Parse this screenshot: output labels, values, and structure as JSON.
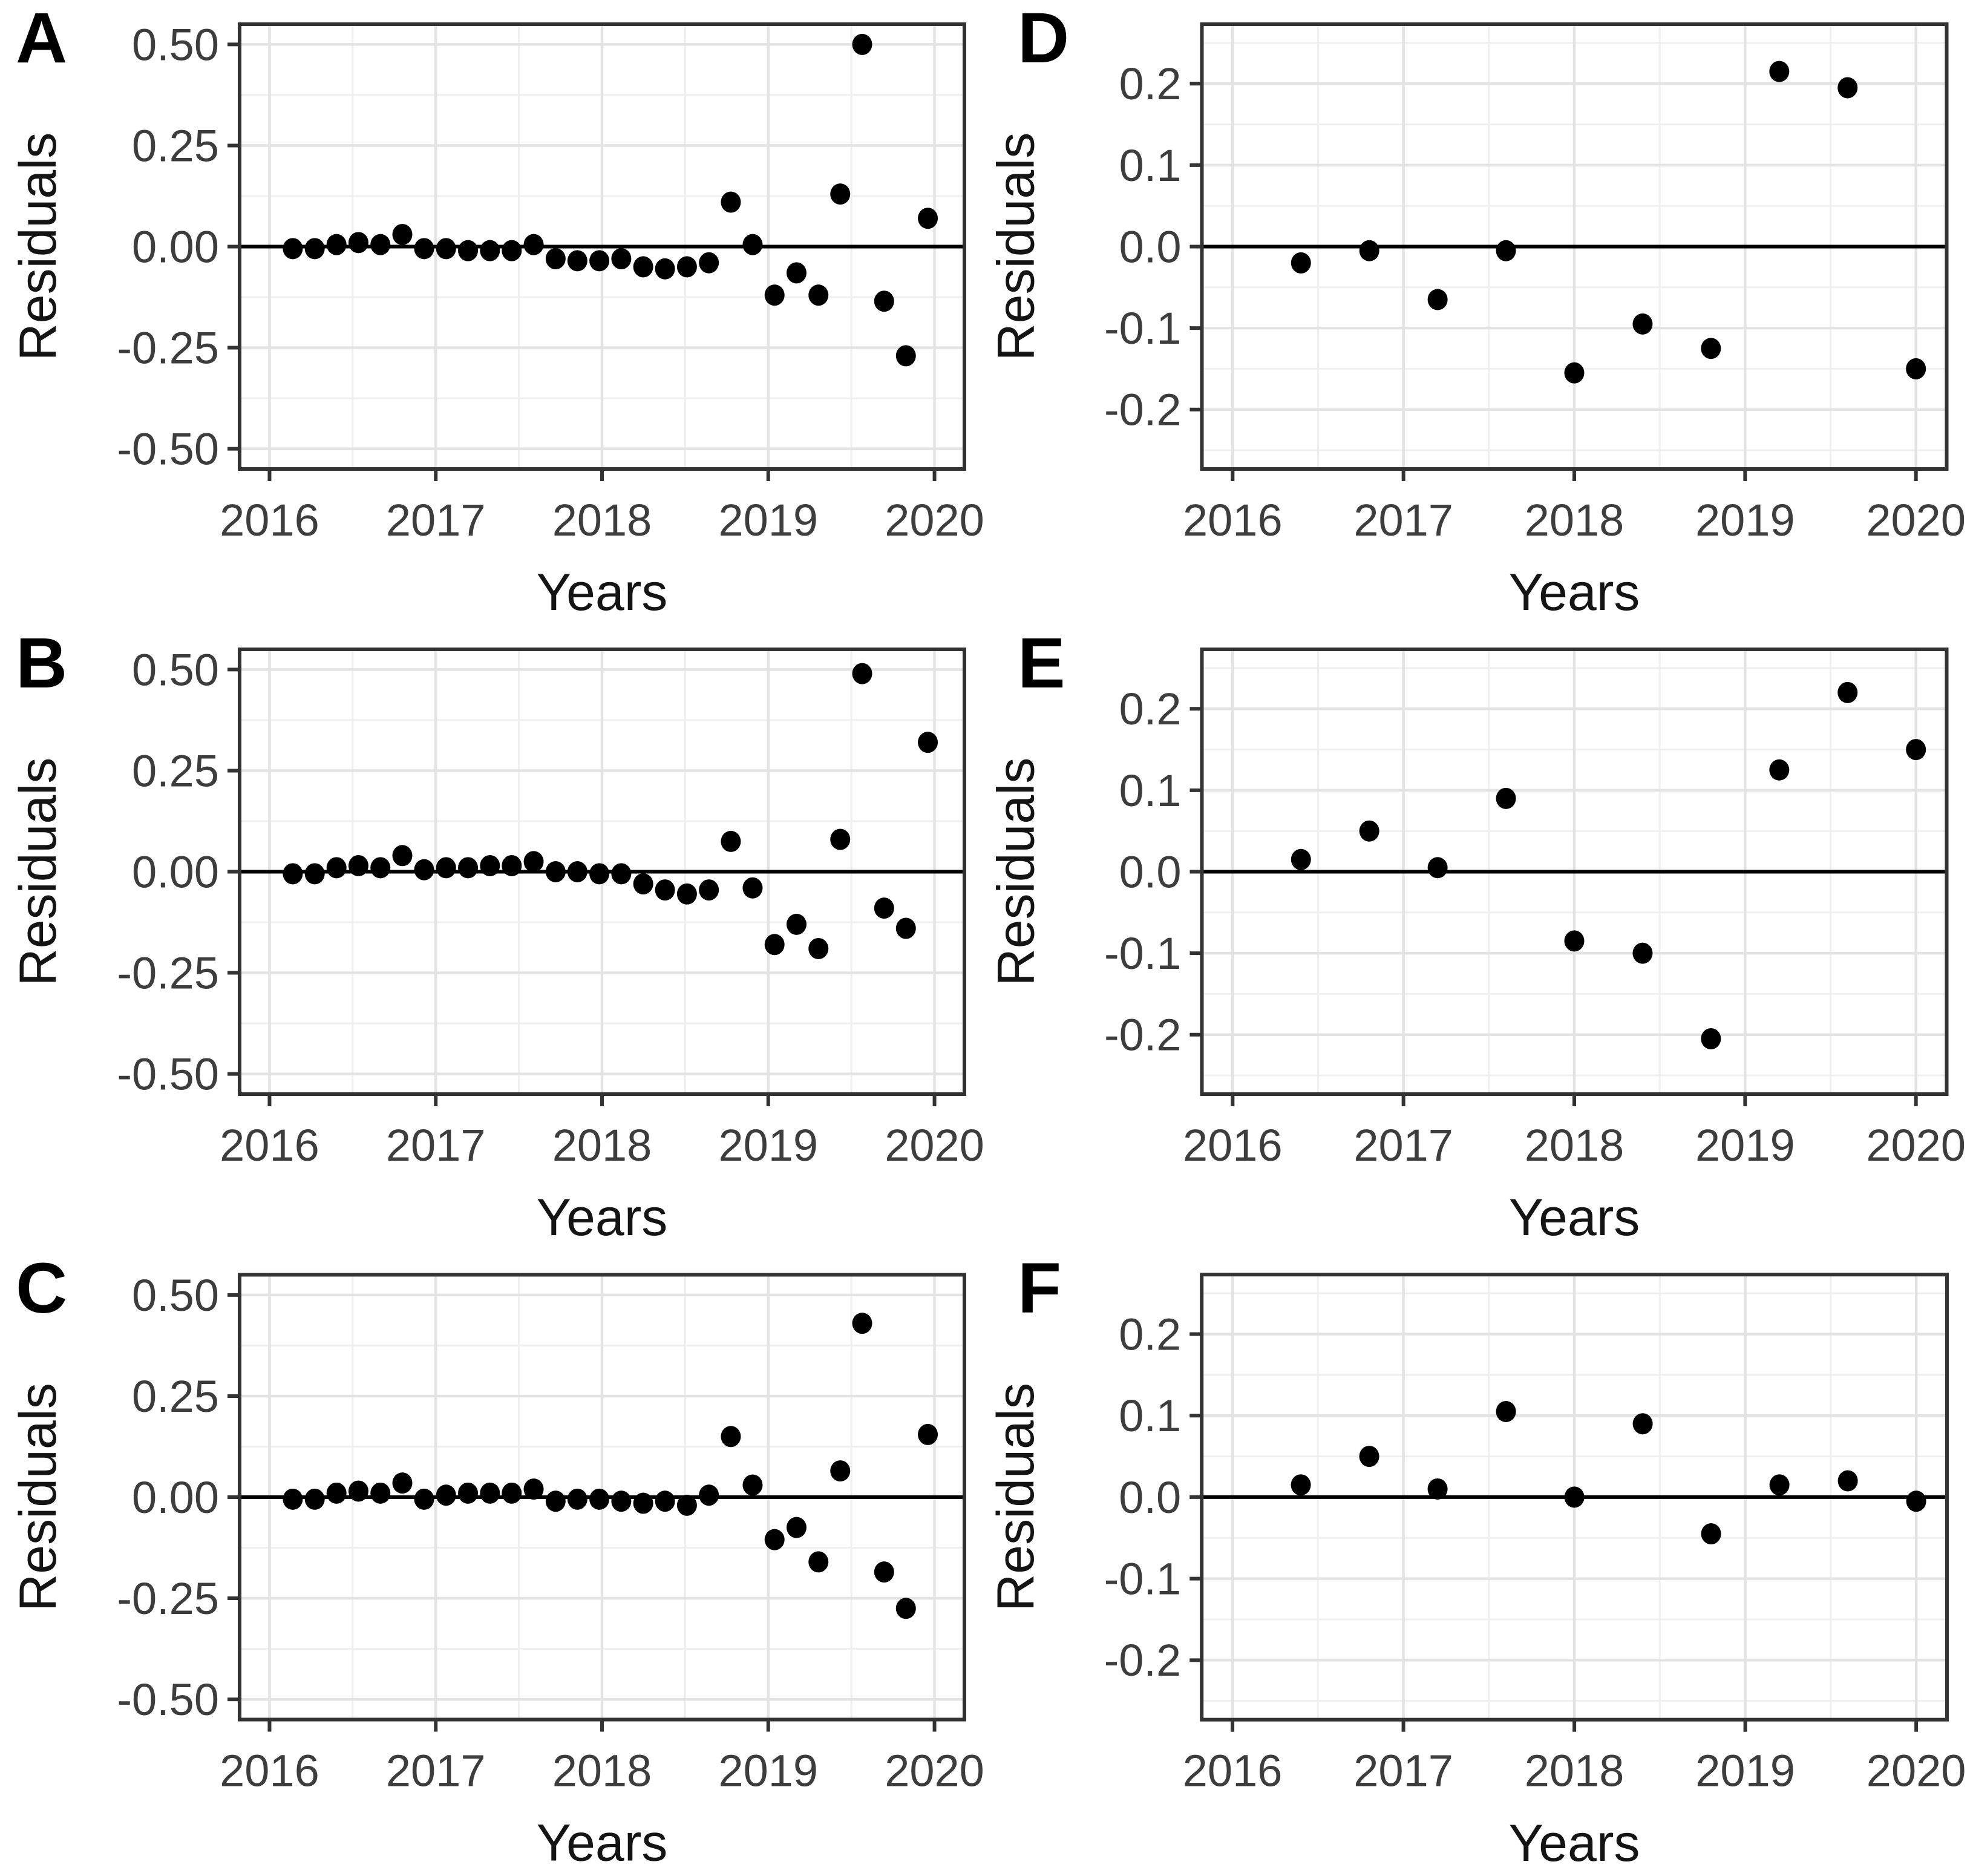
{
  "figure_title": "",
  "axis": {
    "xlabel": "Years",
    "ylabel": "Residuals"
  },
  "chart_data": [
    {
      "panel": "A",
      "type": "scatter",
      "xlabel": "Years",
      "ylabel": "Residuals",
      "xlim": [
        2015.82,
        2020.18
      ],
      "ylim": [
        -0.55,
        0.55
      ],
      "x_major": [
        2016,
        2017,
        2018,
        2019,
        2020
      ],
      "x_major_labels": [
        "2016",
        "2017",
        "2018",
        "2019",
        "2020"
      ],
      "x_minor": [
        2016.5,
        2017.5,
        2018.5,
        2019.5
      ],
      "y_major": [
        0.5,
        0.25,
        0,
        -0.25,
        -0.5
      ],
      "y_major_labels": [
        "0.50",
        "0.25",
        "0.00",
        "-0.25",
        "-0.50"
      ],
      "y_minor": [
        0.375,
        0.125,
        -0.125,
        -0.375
      ],
      "zero_line": true,
      "grid": "on",
      "legend_position": "none",
      "point_color": "#000000",
      "points": [
        [
          2016.14,
          -0.005
        ],
        [
          2016.272,
          -0.005
        ],
        [
          2016.403,
          0.005
        ],
        [
          2016.535,
          0.01
        ],
        [
          2016.667,
          0.005
        ],
        [
          2016.799,
          0.03
        ],
        [
          2016.93,
          -0.005
        ],
        [
          2017.062,
          -0.005
        ],
        [
          2017.194,
          -0.01
        ],
        [
          2017.326,
          -0.01
        ],
        [
          2017.457,
          -0.01
        ],
        [
          2017.589,
          0.005
        ],
        [
          2017.721,
          -0.03
        ],
        [
          2017.852,
          -0.035
        ],
        [
          2017.984,
          -0.035
        ],
        [
          2018.116,
          -0.03
        ],
        [
          2018.248,
          -0.05
        ],
        [
          2018.379,
          -0.055
        ],
        [
          2018.511,
          -0.05
        ],
        [
          2018.643,
          -0.04
        ],
        [
          2018.775,
          0.11
        ],
        [
          2018.906,
          0.005
        ],
        [
          2019.038,
          -0.12
        ],
        [
          2019.17,
          -0.065
        ],
        [
          2019.302,
          -0.12
        ],
        [
          2019.433,
          0.13
        ],
        [
          2019.565,
          0.5
        ],
        [
          2019.697,
          -0.135
        ],
        [
          2019.828,
          -0.27
        ],
        [
          2019.96,
          0.07
        ]
      ]
    },
    {
      "panel": "B",
      "type": "scatter",
      "xlabel": "Years",
      "ylabel": "Residuals",
      "xlim": [
        2015.82,
        2020.18
      ],
      "ylim": [
        -0.55,
        0.55
      ],
      "x_major": [
        2016,
        2017,
        2018,
        2019,
        2020
      ],
      "x_major_labels": [
        "2016",
        "2017",
        "2018",
        "2019",
        "2020"
      ],
      "x_minor": [
        2016.5,
        2017.5,
        2018.5,
        2019.5
      ],
      "y_major": [
        0.5,
        0.25,
        0,
        -0.25,
        -0.5
      ],
      "y_major_labels": [
        "0.50",
        "0.25",
        "0.00",
        "-0.25",
        "-0.50"
      ],
      "y_minor": [
        0.375,
        0.125,
        -0.125,
        -0.375
      ],
      "zero_line": true,
      "grid": "on",
      "legend_position": "none",
      "point_color": "#000000",
      "points": [
        [
          2016.14,
          -0.005
        ],
        [
          2016.272,
          -0.005
        ],
        [
          2016.403,
          0.01
        ],
        [
          2016.535,
          0.015
        ],
        [
          2016.667,
          0.01
        ],
        [
          2016.799,
          0.04
        ],
        [
          2016.93,
          0.005
        ],
        [
          2017.062,
          0.01
        ],
        [
          2017.194,
          0.01
        ],
        [
          2017.326,
          0.015
        ],
        [
          2017.457,
          0.015
        ],
        [
          2017.589,
          0.025
        ],
        [
          2017.721,
          0.0
        ],
        [
          2017.852,
          0.0
        ],
        [
          2017.984,
          -0.005
        ],
        [
          2018.116,
          -0.005
        ],
        [
          2018.248,
          -0.03
        ],
        [
          2018.379,
          -0.045
        ],
        [
          2018.511,
          -0.055
        ],
        [
          2018.643,
          -0.045
        ],
        [
          2018.775,
          0.075
        ],
        [
          2018.906,
          -0.04
        ],
        [
          2019.038,
          -0.18
        ],
        [
          2019.17,
          -0.13
        ],
        [
          2019.302,
          -0.19
        ],
        [
          2019.433,
          0.08
        ],
        [
          2019.565,
          0.49
        ],
        [
          2019.697,
          -0.09
        ],
        [
          2019.828,
          -0.14
        ],
        [
          2019.96,
          0.32
        ]
      ]
    },
    {
      "panel": "C",
      "type": "scatter",
      "xlabel": "Years",
      "ylabel": "Residuals",
      "xlim": [
        2015.82,
        2020.18
      ],
      "ylim": [
        -0.55,
        0.55
      ],
      "x_major": [
        2016,
        2017,
        2018,
        2019,
        2020
      ],
      "x_major_labels": [
        "2016",
        "2017",
        "2018",
        "2019",
        "2020"
      ],
      "x_minor": [
        2016.5,
        2017.5,
        2018.5,
        2019.5
      ],
      "y_major": [
        0.5,
        0.25,
        0,
        -0.25,
        -0.5
      ],
      "y_major_labels": [
        "0.50",
        "0.25",
        "0.00",
        "-0.25",
        "-0.50"
      ],
      "y_minor": [
        0.375,
        0.125,
        -0.125,
        -0.375
      ],
      "zero_line": true,
      "grid": "on",
      "legend_position": "none",
      "point_color": "#000000",
      "points": [
        [
          2016.14,
          -0.005
        ],
        [
          2016.272,
          -0.005
        ],
        [
          2016.403,
          0.01
        ],
        [
          2016.535,
          0.015
        ],
        [
          2016.667,
          0.01
        ],
        [
          2016.799,
          0.035
        ],
        [
          2016.93,
          -0.005
        ],
        [
          2017.062,
          0.005
        ],
        [
          2017.194,
          0.01
        ],
        [
          2017.326,
          0.01
        ],
        [
          2017.457,
          0.01
        ],
        [
          2017.589,
          0.02
        ],
        [
          2017.721,
          -0.01
        ],
        [
          2017.852,
          -0.005
        ],
        [
          2017.984,
          -0.005
        ],
        [
          2018.116,
          -0.01
        ],
        [
          2018.248,
          -0.015
        ],
        [
          2018.379,
          -0.01
        ],
        [
          2018.511,
          -0.02
        ],
        [
          2018.643,
          0.005
        ],
        [
          2018.775,
          0.15
        ],
        [
          2018.906,
          0.03
        ],
        [
          2019.038,
          -0.105
        ],
        [
          2019.17,
          -0.075
        ],
        [
          2019.302,
          -0.16
        ],
        [
          2019.433,
          0.065
        ],
        [
          2019.565,
          0.43
        ],
        [
          2019.697,
          -0.185
        ],
        [
          2019.828,
          -0.275
        ],
        [
          2019.96,
          0.155
        ]
      ]
    },
    {
      "panel": "D",
      "type": "scatter",
      "xlabel": "Years",
      "ylabel": "Residuals",
      "xlim": [
        2015.82,
        2020.18
      ],
      "ylim": [
        -0.273,
        0.273
      ],
      "x_major": [
        2016,
        2017,
        2018,
        2019,
        2020
      ],
      "x_major_labels": [
        "2016",
        "2017",
        "2018",
        "2019",
        "2020"
      ],
      "x_minor": [
        2016.5,
        2017.5,
        2018.5,
        2019.5
      ],
      "y_major": [
        0.2,
        0.1,
        0,
        -0.1,
        -0.2
      ],
      "y_major_labels": [
        "0.2",
        "0.1",
        "0.0",
        "-0.1",
        "-0.2"
      ],
      "y_minor": [
        0.25,
        0.15,
        0.05,
        -0.05,
        -0.15,
        -0.25
      ],
      "zero_line": true,
      "grid": "on",
      "legend_position": "none",
      "point_color": "#000000",
      "points": [
        [
          2016.4,
          -0.02
        ],
        [
          2016.8,
          -0.005
        ],
        [
          2017.2,
          -0.065
        ],
        [
          2017.6,
          -0.005
        ],
        [
          2018.0,
          -0.155
        ],
        [
          2018.4,
          -0.095
        ],
        [
          2018.8,
          -0.125
        ],
        [
          2019.2,
          0.215
        ],
        [
          2019.6,
          0.195
        ],
        [
          2020.0,
          -0.15
        ]
      ]
    },
    {
      "panel": "E",
      "type": "scatter",
      "xlabel": "Years",
      "ylabel": "Residuals",
      "xlim": [
        2015.82,
        2020.18
      ],
      "ylim": [
        -0.273,
        0.273
      ],
      "x_major": [
        2016,
        2017,
        2018,
        2019,
        2020
      ],
      "x_major_labels": [
        "2016",
        "2017",
        "2018",
        "2019",
        "2020"
      ],
      "x_minor": [
        2016.5,
        2017.5,
        2018.5,
        2019.5
      ],
      "y_major": [
        0.2,
        0.1,
        0,
        -0.1,
        -0.2
      ],
      "y_major_labels": [
        "0.2",
        "0.1",
        "0.0",
        "-0.1",
        "-0.2"
      ],
      "y_minor": [
        0.25,
        0.15,
        0.05,
        -0.05,
        -0.15,
        -0.25
      ],
      "zero_line": true,
      "grid": "on",
      "legend_position": "none",
      "point_color": "#000000",
      "points": [
        [
          2016.4,
          0.015
        ],
        [
          2016.8,
          0.05
        ],
        [
          2017.2,
          0.005
        ],
        [
          2017.6,
          0.09
        ],
        [
          2018.0,
          -0.085
        ],
        [
          2018.4,
          -0.1
        ],
        [
          2018.8,
          -0.205
        ],
        [
          2019.2,
          0.125
        ],
        [
          2019.6,
          0.22
        ],
        [
          2020.0,
          0.15
        ]
      ]
    },
    {
      "panel": "F",
      "type": "scatter",
      "xlabel": "Years",
      "ylabel": "Residuals",
      "xlim": [
        2015.82,
        2020.18
      ],
      "ylim": [
        -0.273,
        0.273
      ],
      "x_major": [
        2016,
        2017,
        2018,
        2019,
        2020
      ],
      "x_major_labels": [
        "2016",
        "2017",
        "2018",
        "2019",
        "2020"
      ],
      "x_minor": [
        2016.5,
        2017.5,
        2018.5,
        2019.5
      ],
      "y_major": [
        0.2,
        0.1,
        0,
        -0.1,
        -0.2
      ],
      "y_major_labels": [
        "0.2",
        "0.1",
        "0.0",
        "-0.1",
        "-0.2"
      ],
      "y_minor": [
        0.25,
        0.15,
        0.05,
        -0.05,
        -0.15,
        -0.25
      ],
      "zero_line": true,
      "grid": "on",
      "legend_position": "none",
      "point_color": "#000000",
      "points": [
        [
          2016.4,
          0.015
        ],
        [
          2016.8,
          0.05
        ],
        [
          2017.2,
          0.01
        ],
        [
          2017.6,
          0.105
        ],
        [
          2018.0,
          0.0
        ],
        [
          2018.4,
          0.09
        ],
        [
          2018.8,
          -0.045
        ],
        [
          2019.2,
          0.015
        ],
        [
          2019.6,
          0.02
        ],
        [
          2020.0,
          -0.005
        ]
      ]
    }
  ],
  "colors": {
    "background": "#ffffff",
    "panel_border": "#333333",
    "grid_major": "#e3e3e3",
    "grid_minor": "#efefef",
    "zero_line": "#000000",
    "point": "#000000",
    "tick_text": "#3d3d3d",
    "title_text": "#141414"
  }
}
